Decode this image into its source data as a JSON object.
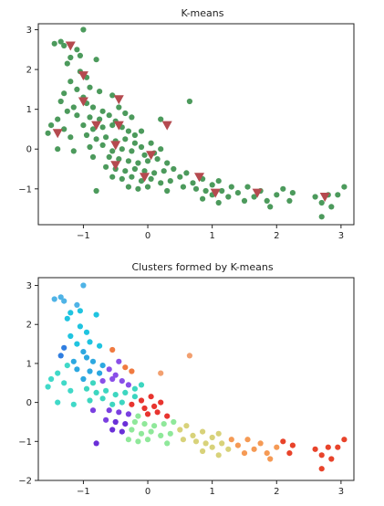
{
  "chart_data": [
    {
      "type": "scatter",
      "title": "K-means",
      "xlabel": "",
      "ylabel": "",
      "xlim": [
        -1.7,
        3.2
      ],
      "ylim": [
        -1.9,
        3.15
      ],
      "xticks": [
        -1,
        0,
        1,
        2,
        3
      ],
      "yticks": [
        -1,
        0,
        1,
        2,
        3
      ],
      "grid": false,
      "colors": {
        "points": "#4c9a5c",
        "centroids": "#b54a4f"
      },
      "points": [
        [
          -1.45,
          2.65
        ],
        [
          -1.35,
          2.7
        ],
        [
          -1.3,
          2.6
        ],
        [
          -1.0,
          3.0
        ],
        [
          -1.1,
          2.5
        ],
        [
          -1.2,
          2.3
        ],
        [
          -1.05,
          2.35
        ],
        [
          -1.25,
          2.15
        ],
        [
          -1.05,
          1.95
        ],
        [
          -0.95,
          1.8
        ],
        [
          -1.2,
          1.7
        ],
        [
          -1.1,
          1.5
        ],
        [
          -0.8,
          2.25
        ],
        [
          -0.9,
          1.55
        ],
        [
          -0.75,
          1.45
        ],
        [
          -0.55,
          1.35
        ],
        [
          -1.3,
          1.4
        ],
        [
          -1.35,
          1.2
        ],
        [
          -1.0,
          1.3
        ],
        [
          -0.95,
          1.15
        ],
        [
          -1.15,
          1.05
        ],
        [
          -1.25,
          0.95
        ],
        [
          -0.85,
          1.05
        ],
        [
          -0.7,
          0.95
        ],
        [
          -1.1,
          0.85
        ],
        [
          -0.9,
          0.8
        ],
        [
          -0.75,
          0.75
        ],
        [
          -0.6,
          0.85
        ],
        [
          -0.45,
          1.05
        ],
        [
          -0.35,
          0.9
        ],
        [
          -0.25,
          0.8
        ],
        [
          -0.5,
          0.7
        ],
        [
          -1.4,
          0.75
        ],
        [
          -1.5,
          0.6
        ],
        [
          -1.55,
          0.4
        ],
        [
          -1.3,
          0.5
        ],
        [
          -1.2,
          0.3
        ],
        [
          -1.0,
          0.6
        ],
        [
          -0.85,
          0.5
        ],
        [
          -0.7,
          0.55
        ],
        [
          -0.55,
          0.6
        ],
        [
          -0.4,
          0.55
        ],
        [
          -0.3,
          0.45
        ],
        [
          -0.2,
          0.35
        ],
        [
          -0.1,
          0.45
        ],
        [
          0.2,
          0.75
        ],
        [
          0.65,
          1.2
        ],
        [
          -0.95,
          0.35
        ],
        [
          -0.8,
          0.25
        ],
        [
          -0.65,
          0.3
        ],
        [
          -0.5,
          0.2
        ],
        [
          -0.35,
          0.25
        ],
        [
          -0.2,
          0.15
        ],
        [
          -1.4,
          0.0
        ],
        [
          -1.15,
          -0.05
        ],
        [
          -0.9,
          0.05
        ],
        [
          -0.7,
          0.1
        ],
        [
          -0.55,
          -0.05
        ],
        [
          -0.4,
          0.0
        ],
        [
          -0.25,
          -0.05
        ],
        [
          -0.1,
          0.05
        ],
        [
          0.05,
          0.15
        ],
        [
          0.2,
          0.0
        ],
        [
          0.1,
          -0.1
        ],
        [
          -0.05,
          -0.15
        ],
        [
          -0.85,
          -0.2
        ],
        [
          -0.6,
          -0.2
        ],
        [
          -0.45,
          -0.25
        ],
        [
          -0.3,
          -0.3
        ],
        [
          -0.15,
          -0.35
        ],
        [
          0.0,
          -0.3
        ],
        [
          0.15,
          -0.25
        ],
        [
          0.3,
          -0.35
        ],
        [
          -0.65,
          -0.45
        ],
        [
          -0.5,
          -0.5
        ],
        [
          -0.35,
          -0.55
        ],
        [
          -0.2,
          -0.5
        ],
        [
          -0.05,
          -0.55
        ],
        [
          0.1,
          -0.6
        ],
        [
          0.25,
          -0.55
        ],
        [
          0.4,
          -0.5
        ],
        [
          -0.55,
          -0.7
        ],
        [
          -0.4,
          -0.75
        ],
        [
          -0.25,
          -0.7
        ],
        [
          -0.1,
          -0.8
        ],
        [
          0.05,
          -0.75
        ],
        [
          0.2,
          -0.85
        ],
        [
          0.35,
          -0.8
        ],
        [
          0.5,
          -0.7
        ],
        [
          0.6,
          -0.6
        ],
        [
          -0.8,
          -1.05
        ],
        [
          -0.3,
          -0.95
        ],
        [
          -0.15,
          -1.0
        ],
        [
          0.0,
          -0.95
        ],
        [
          0.3,
          -1.05
        ],
        [
          0.55,
          -0.95
        ],
        [
          0.7,
          -0.85
        ],
        [
          0.85,
          -0.75
        ],
        [
          0.75,
          -1.0
        ],
        [
          0.9,
          -1.05
        ],
        [
          1.0,
          -0.9
        ],
        [
          1.1,
          -0.8
        ],
        [
          1.0,
          -1.15
        ],
        [
          1.15,
          -1.05
        ],
        [
          1.25,
          -1.2
        ],
        [
          1.1,
          -1.35
        ],
        [
          0.85,
          -1.25
        ],
        [
          1.3,
          -0.95
        ],
        [
          1.4,
          -1.1
        ],
        [
          1.5,
          -1.3
        ],
        [
          1.55,
          -0.95
        ],
        [
          1.65,
          -1.2
        ],
        [
          1.75,
          -1.05
        ],
        [
          1.85,
          -1.3
        ],
        [
          1.9,
          -1.45
        ],
        [
          2.0,
          -1.15
        ],
        [
          2.1,
          -1.0
        ],
        [
          2.2,
          -1.3
        ],
        [
          2.25,
          -1.1
        ],
        [
          2.6,
          -1.2
        ],
        [
          2.7,
          -1.35
        ],
        [
          2.7,
          -1.7
        ],
        [
          2.8,
          -1.15
        ],
        [
          2.85,
          -1.45
        ],
        [
          2.95,
          -1.15
        ],
        [
          3.05,
          -0.95
        ]
      ],
      "centroids": [
        [
          -1.2,
          2.6
        ],
        [
          -1.0,
          1.85
        ],
        [
          -1.0,
          1.2
        ],
        [
          -1.4,
          0.4
        ],
        [
          -0.8,
          0.6
        ],
        [
          -0.45,
          1.25
        ],
        [
          -0.45,
          0.6
        ],
        [
          -0.5,
          0.1
        ],
        [
          -0.5,
          -0.4
        ],
        [
          -0.05,
          -0.7
        ],
        [
          0.05,
          -0.15
        ],
        [
          0.3,
          0.6
        ],
        [
          0.8,
          -0.7
        ],
        [
          1.05,
          -1.1
        ],
        [
          1.7,
          -1.1
        ],
        [
          2.75,
          -1.2
        ]
      ]
    },
    {
      "type": "scatter",
      "title": "Clusters formed by K-means",
      "xlabel": "",
      "ylabel": "",
      "xlim": [
        -1.7,
        3.2
      ],
      "ylim": [
        -2.0,
        3.2
      ],
      "xticks": [
        -1,
        0,
        1,
        2,
        3
      ],
      "yticks": [
        -2,
        -1,
        0,
        1,
        2,
        3
      ],
      "grid": false,
      "cluster_colors": [
        "#4fb3e6",
        "#1fc4e0",
        "#2f7de0",
        "#40d9c8",
        "#2ca8e0",
        "#8a4fe8",
        "#3dd6c0",
        "#7a3fe0",
        "#6a2fd8",
        "#8fe89a",
        "#e8342f",
        "#f2a070",
        "#f07a40",
        "#d8d27a",
        "#f59a55",
        "#e8432a"
      ],
      "points": [
        [
          -1.45,
          2.65,
          0
        ],
        [
          -1.35,
          2.7,
          0
        ],
        [
          -1.3,
          2.6,
          0
        ],
        [
          -1.0,
          3.0,
          0
        ],
        [
          -1.1,
          2.5,
          0
        ],
        [
          -1.2,
          2.3,
          1
        ],
        [
          -1.05,
          2.35,
          1
        ],
        [
          -1.25,
          2.15,
          1
        ],
        [
          -1.05,
          1.95,
          1
        ],
        [
          -0.95,
          1.8,
          1
        ],
        [
          -1.2,
          1.7,
          1
        ],
        [
          -1.1,
          1.5,
          1
        ],
        [
          -0.8,
          2.25,
          1
        ],
        [
          -0.9,
          1.55,
          1
        ],
        [
          -0.75,
          1.45,
          1
        ],
        [
          -0.55,
          1.35,
          12
        ],
        [
          -1.3,
          1.4,
          2
        ],
        [
          -1.35,
          1.2,
          2
        ],
        [
          -1.0,
          1.3,
          4
        ],
        [
          -0.95,
          1.15,
          4
        ],
        [
          -1.15,
          1.05,
          4
        ],
        [
          -1.25,
          0.95,
          3
        ],
        [
          -0.85,
          1.05,
          4
        ],
        [
          -0.7,
          0.95,
          4
        ],
        [
          -1.1,
          0.85,
          4
        ],
        [
          -0.9,
          0.8,
          4
        ],
        [
          -0.75,
          0.75,
          4
        ],
        [
          -0.6,
          0.85,
          5
        ],
        [
          -0.45,
          1.05,
          5
        ],
        [
          -0.35,
          0.9,
          12
        ],
        [
          -0.25,
          0.8,
          12
        ],
        [
          -0.5,
          0.7,
          5
        ],
        [
          -1.4,
          0.75,
          3
        ],
        [
          -1.5,
          0.6,
          3
        ],
        [
          -1.55,
          0.4,
          3
        ],
        [
          -1.3,
          0.5,
          3
        ],
        [
          -1.2,
          0.3,
          3
        ],
        [
          -1.0,
          0.6,
          4
        ],
        [
          -0.85,
          0.5,
          6
        ],
        [
          -0.7,
          0.55,
          5
        ],
        [
          -0.55,
          0.6,
          5
        ],
        [
          -0.4,
          0.55,
          5
        ],
        [
          -0.3,
          0.45,
          5
        ],
        [
          -0.2,
          0.35,
          6
        ],
        [
          -0.1,
          0.45,
          6
        ],
        [
          0.2,
          0.75,
          11
        ],
        [
          0.65,
          1.2,
          11
        ],
        [
          -0.95,
          0.35,
          6
        ],
        [
          -0.8,
          0.25,
          6
        ],
        [
          -0.65,
          0.3,
          6
        ],
        [
          -0.5,
          0.2,
          6
        ],
        [
          -0.35,
          0.25,
          6
        ],
        [
          -0.2,
          0.15,
          6
        ],
        [
          -1.4,
          0.0,
          3
        ],
        [
          -1.15,
          -0.05,
          3
        ],
        [
          -0.9,
          0.05,
          6
        ],
        [
          -0.7,
          0.1,
          6
        ],
        [
          -0.55,
          -0.05,
          6
        ],
        [
          -0.4,
          0.0,
          6
        ],
        [
          -0.25,
          -0.05,
          10
        ],
        [
          -0.1,
          0.05,
          10
        ],
        [
          0.05,
          0.15,
          10
        ],
        [
          0.2,
          0.0,
          10
        ],
        [
          0.1,
          -0.1,
          10
        ],
        [
          -0.05,
          -0.15,
          10
        ],
        [
          -0.85,
          -0.2,
          7
        ],
        [
          -0.6,
          -0.2,
          7
        ],
        [
          -0.45,
          -0.25,
          7
        ],
        [
          -0.3,
          -0.3,
          7
        ],
        [
          -0.15,
          -0.35,
          9
        ],
        [
          0.0,
          -0.3,
          10
        ],
        [
          0.15,
          -0.25,
          10
        ],
        [
          0.3,
          -0.35,
          10
        ],
        [
          -0.65,
          -0.45,
          7
        ],
        [
          -0.5,
          -0.5,
          8
        ],
        [
          -0.35,
          -0.55,
          8
        ],
        [
          -0.2,
          -0.5,
          9
        ],
        [
          -0.05,
          -0.55,
          9
        ],
        [
          0.1,
          -0.6,
          9
        ],
        [
          0.25,
          -0.55,
          9
        ],
        [
          0.4,
          -0.5,
          9
        ],
        [
          -0.55,
          -0.7,
          8
        ],
        [
          -0.4,
          -0.75,
          8
        ],
        [
          -0.25,
          -0.7,
          9
        ],
        [
          -0.1,
          -0.8,
          9
        ],
        [
          0.05,
          -0.75,
          9
        ],
        [
          0.2,
          -0.85,
          9
        ],
        [
          0.35,
          -0.8,
          9
        ],
        [
          0.5,
          -0.7,
          13
        ],
        [
          0.6,
          -0.6,
          13
        ],
        [
          -0.8,
          -1.05,
          8
        ],
        [
          -0.3,
          -0.95,
          9
        ],
        [
          -0.15,
          -1.0,
          9
        ],
        [
          0.0,
          -0.95,
          9
        ],
        [
          0.3,
          -1.05,
          9
        ],
        [
          0.55,
          -0.95,
          13
        ],
        [
          0.7,
          -0.85,
          13
        ],
        [
          0.85,
          -0.75,
          13
        ],
        [
          0.75,
          -1.0,
          13
        ],
        [
          0.9,
          -1.05,
          13
        ],
        [
          1.0,
          -0.9,
          13
        ],
        [
          1.1,
          -0.8,
          13
        ],
        [
          1.0,
          -1.15,
          13
        ],
        [
          1.15,
          -1.05,
          13
        ],
        [
          1.25,
          -1.2,
          13
        ],
        [
          1.1,
          -1.35,
          13
        ],
        [
          0.85,
          -1.25,
          13
        ],
        [
          1.3,
          -0.95,
          14
        ],
        [
          1.4,
          -1.1,
          14
        ],
        [
          1.5,
          -1.3,
          14
        ],
        [
          1.55,
          -0.95,
          14
        ],
        [
          1.65,
          -1.2,
          14
        ],
        [
          1.75,
          -1.05,
          14
        ],
        [
          1.85,
          -1.3,
          14
        ],
        [
          1.9,
          -1.45,
          14
        ],
        [
          2.0,
          -1.15,
          14
        ],
        [
          2.1,
          -1.0,
          15
        ],
        [
          2.2,
          -1.3,
          15
        ],
        [
          2.25,
          -1.1,
          15
        ],
        [
          2.6,
          -1.2,
          15
        ],
        [
          2.7,
          -1.35,
          15
        ],
        [
          2.7,
          -1.7,
          15
        ],
        [
          2.8,
          -1.15,
          15
        ],
        [
          2.85,
          -1.45,
          15
        ],
        [
          2.95,
          -1.15,
          15
        ],
        [
          3.05,
          -0.95,
          15
        ]
      ]
    }
  ]
}
